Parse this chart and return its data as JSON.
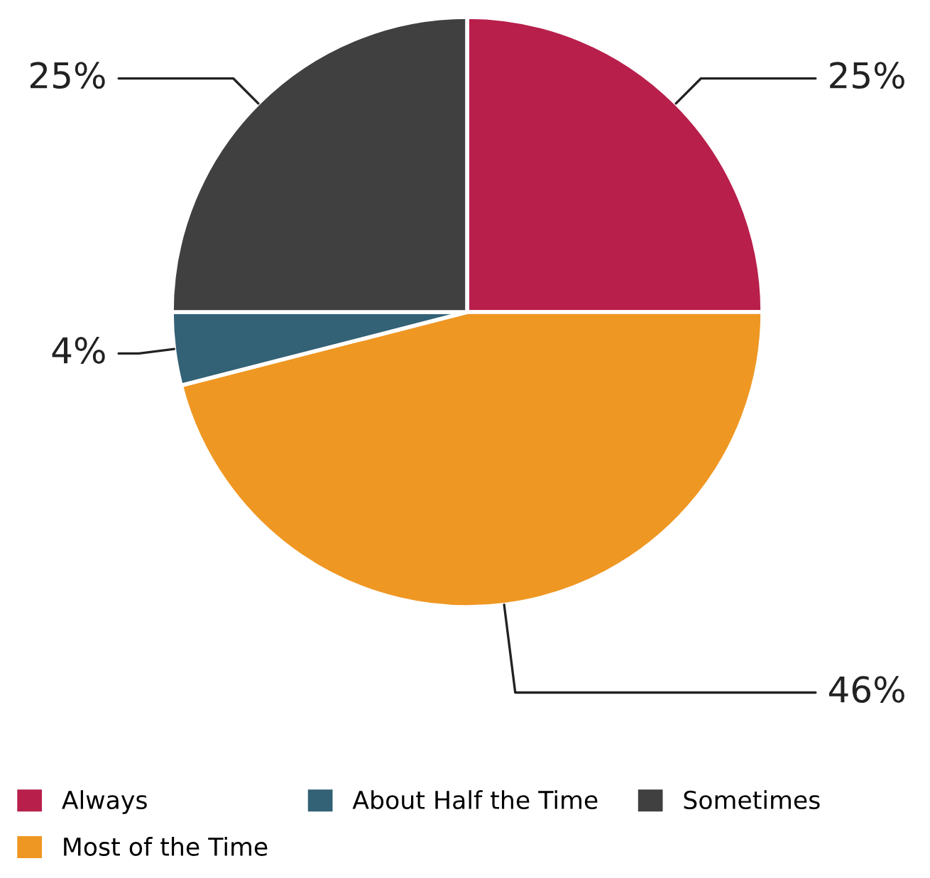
{
  "chart_data": {
    "type": "pie",
    "categories": [
      "Always",
      "Most of the Time",
      "About Half the Time",
      "Sometimes"
    ],
    "values": [
      25,
      46,
      4,
      25
    ],
    "colors": [
      "#b81f4b",
      "#ef9723",
      "#336175",
      "#404040"
    ],
    "value_labels": [
      "25%",
      "46%",
      "4%",
      "25%"
    ],
    "legend": "bottom"
  }
}
